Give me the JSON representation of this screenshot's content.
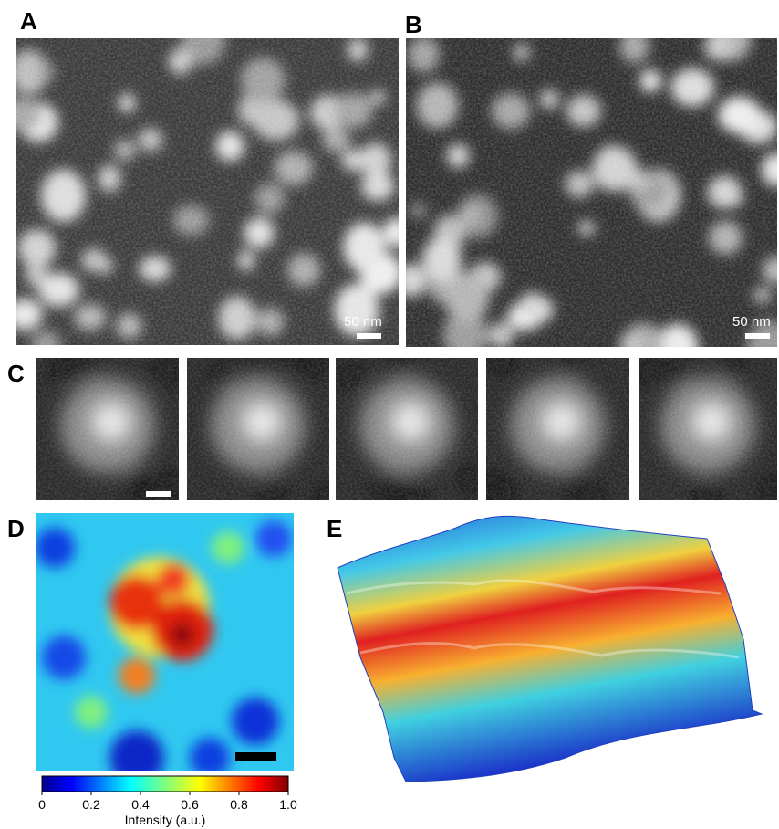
{
  "panels": {
    "a": {
      "label": "A",
      "scale_bar": "50 nm"
    },
    "b": {
      "label": "B",
      "scale_bar": "50 nm"
    },
    "c": {
      "label": "C"
    },
    "d": {
      "label": "D"
    },
    "e": {
      "label": "E"
    }
  },
  "colorbar": {
    "lim": [
      0,
      1
    ],
    "ticks": [
      0,
      0.2,
      0.4,
      0.6,
      0.8,
      {
        "value": 1,
        "label": "1.0"
      }
    ],
    "label": "Intensity (a.u.)"
  }
}
